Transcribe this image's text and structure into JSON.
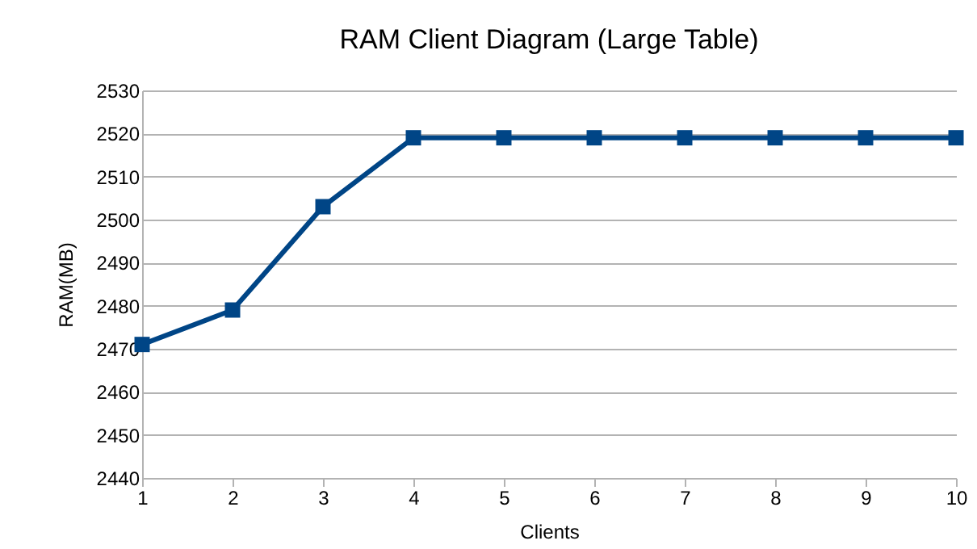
{
  "chart_data": {
    "type": "line",
    "title": "RAM Client Diagram (Large Table)",
    "xlabel": "Clients",
    "ylabel": "RAM(MB)",
    "x": [
      1,
      2,
      3,
      4,
      5,
      6,
      7,
      8,
      9,
      10
    ],
    "series": [
      {
        "color": "#004586",
        "values": [
          2471,
          2479,
          2503,
          2519,
          2519,
          2519,
          2519,
          2519,
          2519,
          2519
        ]
      }
    ],
    "xlim": [
      1,
      10
    ],
    "xticks": [
      1,
      2,
      3,
      4,
      5,
      6,
      7,
      8,
      9,
      10
    ],
    "ylim": [
      2440,
      2530
    ],
    "yticks": [
      2440,
      2450,
      2460,
      2470,
      2480,
      2490,
      2500,
      2510,
      2520,
      2530
    ],
    "grid": "y",
    "legend": false,
    "marker": "square",
    "line_style": "solid"
  }
}
